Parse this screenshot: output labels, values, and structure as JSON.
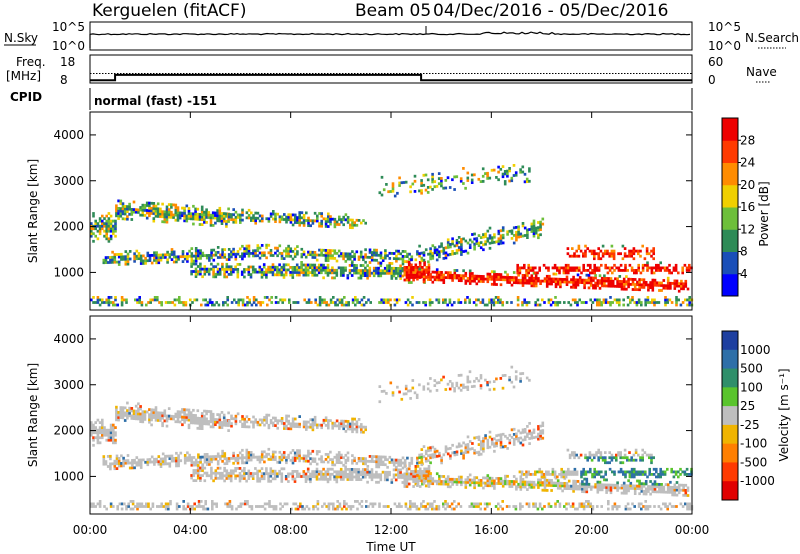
{
  "header": {
    "station": "Kerguelen (fitACF)",
    "beam": "Beam 05",
    "date_range": "04/Dec/2016 - 05/Dec/2016"
  },
  "noise_panel": {
    "left_label": "N.Sky",
    "right_label": "N.Search",
    "left_ticks": [
      "10^5",
      "10^0"
    ],
    "right_ticks": [
      "10^5",
      "10^0"
    ]
  },
  "freq_panel": {
    "left_label": "Freq.",
    "left_unit": "[MHz]",
    "right_label": "Nave",
    "left_ticks": [
      "18",
      "8"
    ],
    "right_ticks": [
      "60",
      "0"
    ]
  },
  "cpid": {
    "label": "CPID",
    "mode": "normal (fast) -151"
  },
  "chart_data": [
    {
      "type": "heatmap",
      "name": "power",
      "ylabel": "Slant Range [km]",
      "yticks": [
        "1000",
        "2000",
        "3000",
        "4000"
      ],
      "ylim": [
        180,
        4500
      ],
      "colorbar_label": "Power [dB]",
      "colorbar_ticks": [
        "4",
        "8",
        "12",
        "16",
        "20",
        "24",
        "28"
      ],
      "colors": [
        "#0000ff",
        "#1a4fb8",
        "#2e8b57",
        "#6dbf3a",
        "#f0d000",
        "#ff8c00",
        "#ff3a00",
        "#ee0000"
      ]
    },
    {
      "type": "heatmap",
      "name": "velocity",
      "ylabel": "Slant Range [km]",
      "yticks": [
        "1000",
        "2000",
        "3000",
        "4000"
      ],
      "ylim": [
        180,
        4500
      ],
      "colorbar_label": "Velocity [m s⁻¹]",
      "colorbar_ticks": [
        "1000",
        "500",
        "100",
        "25",
        "-25",
        "-100",
        "-500",
        "-1000"
      ],
      "colors": [
        "#1e3fa0",
        "#2e6fa8",
        "#2f8f6a",
        "#59c42c",
        "#bebebe",
        "#f0b400",
        "#ff7f00",
        "#ff3a00",
        "#e00000"
      ]
    }
  ],
  "x_axis": {
    "ticks": [
      "00:00",
      "04:00",
      "08:00",
      "12:00",
      "16:00",
      "20:00",
      "00:00"
    ],
    "label": "Time UT"
  }
}
